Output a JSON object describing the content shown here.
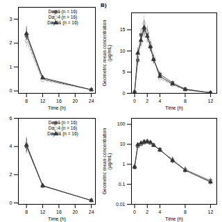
{
  "chart_data": [
    {
      "type": "line",
      "x": [
        8,
        12,
        24
      ],
      "xlabel": "Time (h)",
      "xlim": [
        6,
        25
      ],
      "xticks": [
        8,
        12,
        16,
        20,
        24
      ],
      "ylim": [
        -0.1,
        3.5
      ],
      "yticks": [
        0,
        1,
        2,
        3
      ],
      "legend": "upper right",
      "series": [
        {
          "name": "Day 1 (n = 16)",
          "color": "#555555",
          "marker": "square",
          "line_style": "solid",
          "values": [
            2.3,
            0.5,
            0.05
          ],
          "error": [
            0.3,
            0.1,
            0.01
          ]
        },
        {
          "name": "Day 4 (n = 16)",
          "color": "#aaaaaa",
          "marker": "circle",
          "line_style": "dashed",
          "values": [
            2.1,
            0.45,
            0.04
          ],
          "error": [
            0.3,
            0.1,
            0.01
          ]
        },
        {
          "name": "Day 11 (n = 16)",
          "color": "#333333",
          "marker": "triangle",
          "line_style": "solid",
          "values": [
            2.4,
            0.55,
            0.05
          ],
          "error": [
            0.3,
            0.1,
            0.01
          ]
        }
      ]
    },
    {
      "type": "line",
      "title": "(B)",
      "x": [
        0,
        0.5,
        1,
        1.5,
        2,
        2.5,
        3,
        4,
        6,
        8,
        12
      ],
      "xlabel": "Time (h)",
      "ylabel": "Geometric mean concentration\n(μg/mL)",
      "xlim": [
        -0.5,
        13
      ],
      "xticks": [
        0,
        2,
        4,
        8,
        12
      ],
      "ylim": [
        0,
        19
      ],
      "yticks": [
        0,
        5,
        10,
        15
      ],
      "series": [
        {
          "color": "#555555",
          "marker": "square",
          "line_style": "solid",
          "values": [
            0.3,
            7.8,
            13.8,
            15.0,
            14.2,
            11.0,
            8.0,
            4.5,
            2.5,
            1.0,
            0.15
          ],
          "error": [
            0.05,
            1.2,
            1.5,
            1.8,
            1.5,
            1.2,
            1.0,
            0.6,
            0.4,
            0.2,
            0.05
          ]
        },
        {
          "color": "#aaaaaa",
          "marker": "circle",
          "line_style": "dashed",
          "values": [
            0.3,
            9.0,
            12.0,
            16.5,
            14.5,
            11.5,
            8.5,
            3.5,
            2.0,
            0.8,
            0.1
          ],
          "error": [
            0.05,
            1.3,
            1.4,
            1.9,
            1.6,
            1.3,
            1.1,
            0.5,
            0.35,
            0.18,
            0.04
          ]
        },
        {
          "color": "#333333",
          "marker": "triangle",
          "line_style": "solid",
          "values": [
            0.3,
            9.5,
            12.5,
            15.5,
            13.5,
            11.0,
            8.0,
            4.0,
            2.2,
            0.9,
            0.12
          ],
          "error": [
            0.05,
            1.3,
            1.4,
            1.8,
            1.5,
            1.2,
            1.0,
            0.55,
            0.38,
            0.19,
            0.04
          ]
        }
      ]
    },
    {
      "type": "line",
      "x": [
        8,
        12,
        24
      ],
      "xlabel": "Time (h)",
      "xlim": [
        6,
        25
      ],
      "xticks": [
        8,
        12,
        16,
        20,
        24
      ],
      "ylim": [
        -0.1,
        6
      ],
      "yticks": [
        0,
        2,
        4,
        6
      ],
      "legend": "upper right",
      "series": [
        {
          "name": "Day 1 (n = 16)",
          "color": "#555555",
          "marker": "square",
          "line_style": "solid",
          "values": [
            4.0,
            1.2,
            0.18
          ],
          "error": [
            0.5,
            0.15,
            0.04
          ]
        },
        {
          "name": "Day 4 (n = 16)",
          "color": "#aaaaaa",
          "marker": "circle",
          "line_style": "dashed",
          "values": [
            4.2,
            1.25,
            0.16
          ],
          "error": [
            0.55,
            0.16,
            0.04
          ]
        },
        {
          "name": "Day 11 (n = 16)",
          "color": "#333333",
          "marker": "triangle",
          "line_style": "solid",
          "values": [
            4.1,
            1.22,
            0.17
          ],
          "error": [
            0.5,
            0.15,
            0.04
          ]
        }
      ]
    },
    {
      "type": "line",
      "x": [
        0,
        0.5,
        1,
        1.5,
        2,
        2.5,
        3,
        4,
        6,
        8,
        12
      ],
      "xlabel": "Time (h)",
      "ylabel": "Geometric mean concentration\n(μg/mL)",
      "xlim": [
        -0.5,
        13
      ],
      "xticks": [
        0,
        2,
        4,
        8,
        12
      ],
      "log": "y",
      "ylim": [
        0.01,
        200
      ],
      "yticks": [
        0.01,
        0.1,
        1,
        10,
        100
      ],
      "series": [
        {
          "color": "#555555",
          "marker": "square",
          "line_style": "solid",
          "values": [
            0.7,
            8.0,
            10.0,
            12.0,
            13.0,
            11.5,
            9.0,
            5.5,
            1.5,
            0.55,
            0.15
          ],
          "error_minus": [
            0.161538,
            1.6,
            1.666667,
            2,
            2.166667,
            1.916667,
            1.5,
            1.269231,
            0.428571,
            0.157143,
            0.042857
          ],
          "error_plus": [
            0.21,
            2,
            2,
            2.4,
            2.6,
            2.3,
            1.8,
            1.65,
            0.6,
            0.22,
            0.06
          ]
        },
        {
          "color": "#aaaaaa",
          "marker": "circle",
          "line_style": "dashed",
          "values": [
            0.8,
            9.0,
            11.0,
            14.0,
            14.5,
            12.0,
            9.5,
            5.0,
            1.8,
            0.55,
            0.14
          ],
          "error_minus": [
            0.184615,
            1.8,
            1.833333,
            2.333333,
            2.416667,
            2,
            1.583333,
            1.153846,
            0.514286,
            0.157143,
            0.04
          ],
          "error_plus": [
            0.24,
            2.25,
            2.2,
            2.8,
            2.9,
            2.4,
            1.9,
            1.5,
            0.72,
            0.22,
            0.056
          ]
        },
        {
          "color": "#333333",
          "marker": "triangle",
          "line_style": "solid",
          "values": [
            0.75,
            9.5,
            11.5,
            13.5,
            14.0,
            12.5,
            9.0,
            5.2,
            1.6,
            0.5,
            0.13
          ],
          "error_minus": [
            0.173077,
            1.9,
            1.916667,
            2.25,
            2.333333,
            2.083333,
            1.5,
            1.2,
            0.457143,
            0.142857,
            0.037143
          ],
          "error_plus": [
            0.225,
            2.375,
            2.3,
            2.7,
            2.8,
            2.5,
            1.8,
            1.56,
            0.64,
            0.2,
            0.052
          ]
        }
      ]
    }
  ]
}
